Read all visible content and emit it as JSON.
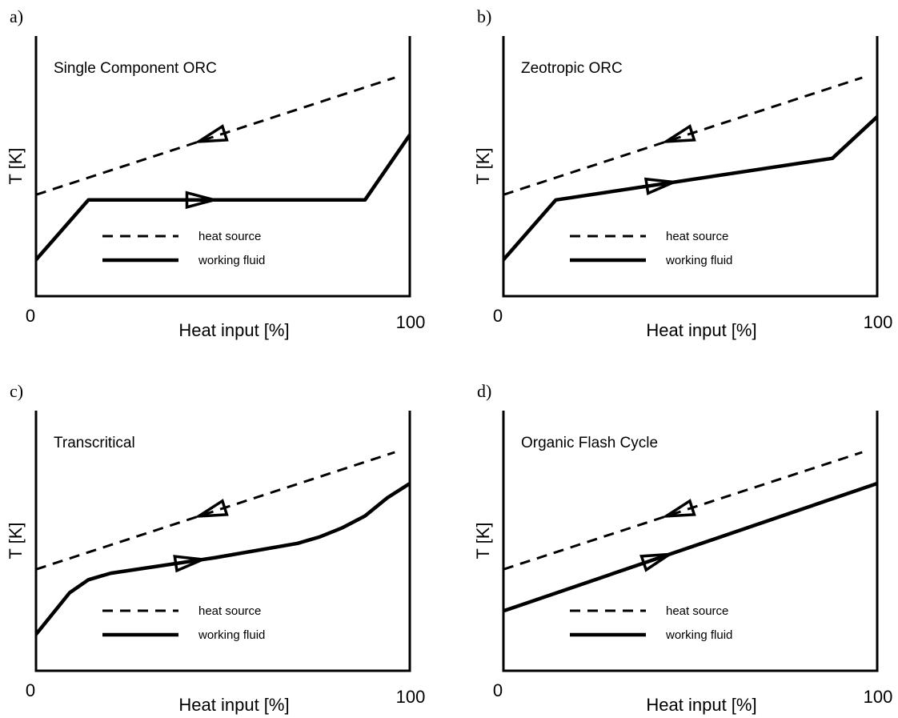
{
  "legend": {
    "source_label": "heat source",
    "fluid_label": "working fluid"
  },
  "chart_data": [
    {
      "type": "line",
      "panel_label": "a)",
      "title": "Single Component ORC",
      "xlabel": "Heat input [%]",
      "ylabel": "T [K]",
      "x_ticks": [
        "0",
        "100"
      ],
      "xlim": [
        0,
        100
      ],
      "ylim": [
        0,
        100
      ],
      "grid": false,
      "series": [
        {
          "name": "heat source",
          "style": "dashed",
          "arrow": "left",
          "arrow_at": 47,
          "x": [
            0,
            96
          ],
          "y": [
            39,
            84
          ]
        },
        {
          "name": "working fluid",
          "style": "solid",
          "arrow": "right",
          "arrow_at": 44,
          "x": [
            0,
            14,
            88,
            100
          ],
          "y": [
            14,
            37,
            37,
            62
          ]
        }
      ]
    },
    {
      "type": "line",
      "panel_label": "b)",
      "title": "Zeotropic ORC",
      "xlabel": "Heat input [%]",
      "ylabel": "T [K]",
      "x_ticks": [
        "0",
        "100"
      ],
      "xlim": [
        0,
        100
      ],
      "ylim": [
        0,
        100
      ],
      "grid": false,
      "series": [
        {
          "name": "heat source",
          "style": "dashed",
          "arrow": "left",
          "arrow_at": 47,
          "x": [
            0,
            96
          ],
          "y": [
            39,
            84
          ]
        },
        {
          "name": "working fluid",
          "style": "solid",
          "arrow": "right",
          "arrow_at": 42,
          "x": [
            0,
            14,
            88,
            100
          ],
          "y": [
            14,
            37,
            53,
            69
          ]
        }
      ]
    },
    {
      "type": "line",
      "panel_label": "c)",
      "title": "Transcritical",
      "xlabel": "Heat input [%]",
      "ylabel": "T [K]",
      "x_ticks": [
        "0",
        "100"
      ],
      "xlim": [
        0,
        100
      ],
      "ylim": [
        0,
        100
      ],
      "grid": false,
      "series": [
        {
          "name": "heat source",
          "style": "dashed",
          "arrow": "left",
          "arrow_at": 47,
          "x": [
            0,
            96
          ],
          "y": [
            39,
            84
          ]
        },
        {
          "name": "working fluid",
          "style": "solid",
          "arrow": "right",
          "arrow_at": 41,
          "x": [
            0,
            9,
            14,
            20,
            48,
            70,
            76,
            82,
            88,
            94,
            100
          ],
          "y": [
            14,
            30,
            35,
            37.5,
            43.5,
            49,
            51.5,
            55,
            59.5,
            66.5,
            72
          ]
        }
      ]
    },
    {
      "type": "line",
      "panel_label": "d)",
      "title": "Organic Flash Cycle",
      "xlabel": "Heat input [%]",
      "ylabel": "T [K]",
      "x_ticks": [
        "0",
        "100"
      ],
      "xlim": [
        0,
        100
      ],
      "ylim": [
        0,
        100
      ],
      "grid": false,
      "series": [
        {
          "name": "heat source",
          "style": "dashed",
          "arrow": "left",
          "arrow_at": 47,
          "x": [
            0,
            96
          ],
          "y": [
            39,
            84
          ]
        },
        {
          "name": "working fluid",
          "style": "solid",
          "arrow": "right",
          "arrow_at": 41,
          "x": [
            0,
            100
          ],
          "y": [
            23,
            72
          ]
        }
      ]
    }
  ]
}
